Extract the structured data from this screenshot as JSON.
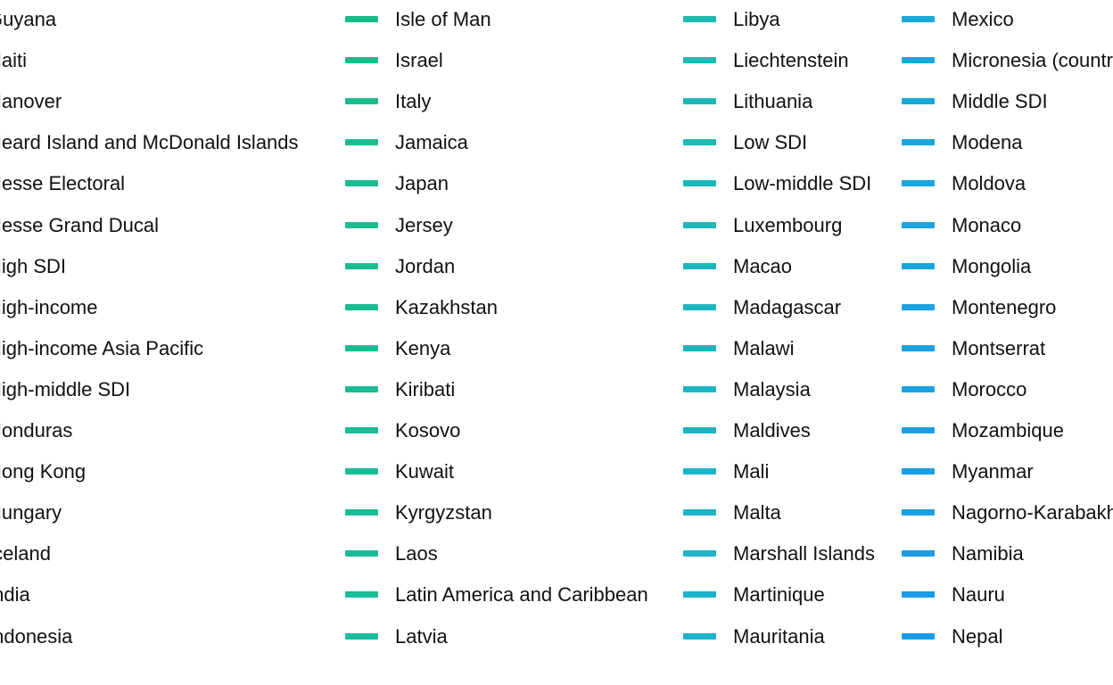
{
  "chart_data": {
    "type": "legend",
    "columns": [
      {
        "items": [
          {
            "label": "Guyana"
          },
          {
            "label": "Haiti"
          },
          {
            "label": "Hanover"
          },
          {
            "label": "Heard Island and McDonald Islands"
          },
          {
            "label": "Hesse Electoral"
          },
          {
            "label": "Hesse Grand Ducal"
          },
          {
            "label": "High SDI"
          },
          {
            "label": "High-income"
          },
          {
            "label": "High-income Asia Pacific"
          },
          {
            "label": "High-middle SDI"
          },
          {
            "label": "Honduras"
          },
          {
            "label": "Hong Kong"
          },
          {
            "label": "Hungary"
          },
          {
            "label": "Iceland"
          },
          {
            "label": "India"
          },
          {
            "label": "Indonesia"
          }
        ]
      },
      {
        "items": [
          {
            "label": "Isle of Man",
            "color": "#1ABC8C"
          },
          {
            "label": "Israel",
            "color": "#1ABC8D"
          },
          {
            "label": "Italy",
            "color": "#1ABC8E"
          },
          {
            "label": "Jamaica",
            "color": "#1ABC8F"
          },
          {
            "label": "Japan",
            "color": "#1ABC90"
          },
          {
            "label": "Jersey",
            "color": "#1ABC91"
          },
          {
            "label": "Jordan",
            "color": "#1ABC92"
          },
          {
            "label": "Kazakhstan",
            "color": "#1ABC93"
          },
          {
            "label": "Kenya",
            "color": "#1ABC94"
          },
          {
            "label": "Kiribati",
            "color": "#1ABC95"
          },
          {
            "label": "Kosovo",
            "color": "#1ABC96"
          },
          {
            "label": "Kuwait",
            "color": "#1ABC97"
          },
          {
            "label": "Kyrgyzstan",
            "color": "#1ABC98"
          },
          {
            "label": "Laos",
            "color": "#1ABC99"
          },
          {
            "label": "Latin America and Caribbean",
            "color": "#1ABC9A"
          },
          {
            "label": "Latvia",
            "color": "#1ABC9B"
          }
        ]
      },
      {
        "items": [
          {
            "label": "Libya",
            "color": "#1EB9B0"
          },
          {
            "label": "Liechtenstein",
            "color": "#1EB9B2"
          },
          {
            "label": "Lithuania",
            "color": "#1EB8B4"
          },
          {
            "label": "Low SDI",
            "color": "#1EB8B6"
          },
          {
            "label": "Low-middle SDI",
            "color": "#1EB7B8"
          },
          {
            "label": "Luxembourg",
            "color": "#1EB7BA"
          },
          {
            "label": "Macao",
            "color": "#1EB6BC"
          },
          {
            "label": "Madagascar",
            "color": "#1EB6BE"
          },
          {
            "label": "Malawi",
            "color": "#1EB5C0"
          },
          {
            "label": "Malaysia",
            "color": "#1EB5C2"
          },
          {
            "label": "Maldives",
            "color": "#1EB4C4"
          },
          {
            "label": "Mali",
            "color": "#1EB4C6"
          },
          {
            "label": "Malta",
            "color": "#1EB3C8"
          },
          {
            "label": "Marshall Islands",
            "color": "#1EB3CA"
          },
          {
            "label": "Martinique",
            "color": "#1EB2CC"
          },
          {
            "label": "Mauritania",
            "color": "#1EB2CE"
          }
        ]
      },
      {
        "items": [
          {
            "label": "Mexico",
            "color": "#1AAAD8"
          },
          {
            "label": "Micronesia (country)",
            "color": "#1AA9D9"
          },
          {
            "label": "Middle SDI",
            "color": "#1AA8DA"
          },
          {
            "label": "Modena",
            "color": "#1AA7DB"
          },
          {
            "label": "Moldova",
            "color": "#1AA6DC"
          },
          {
            "label": "Monaco",
            "color": "#1AA5DD"
          },
          {
            "label": "Mongolia",
            "color": "#1AA4DE"
          },
          {
            "label": "Montenegro",
            "color": "#1AA3DF"
          },
          {
            "label": "Montserrat",
            "color": "#1AA2E0"
          },
          {
            "label": "Morocco",
            "color": "#1AA1E1"
          },
          {
            "label": "Mozambique",
            "color": "#1AA0E2"
          },
          {
            "label": "Myanmar",
            "color": "#1A9FE3"
          },
          {
            "label": "Nagorno-Karabakh",
            "color": "#1A9EE4"
          },
          {
            "label": "Namibia",
            "color": "#1A9DE5"
          },
          {
            "label": "Nauru",
            "color": "#1A9CE6"
          },
          {
            "label": "Nepal",
            "color": "#1A9BE7"
          }
        ]
      }
    ]
  }
}
